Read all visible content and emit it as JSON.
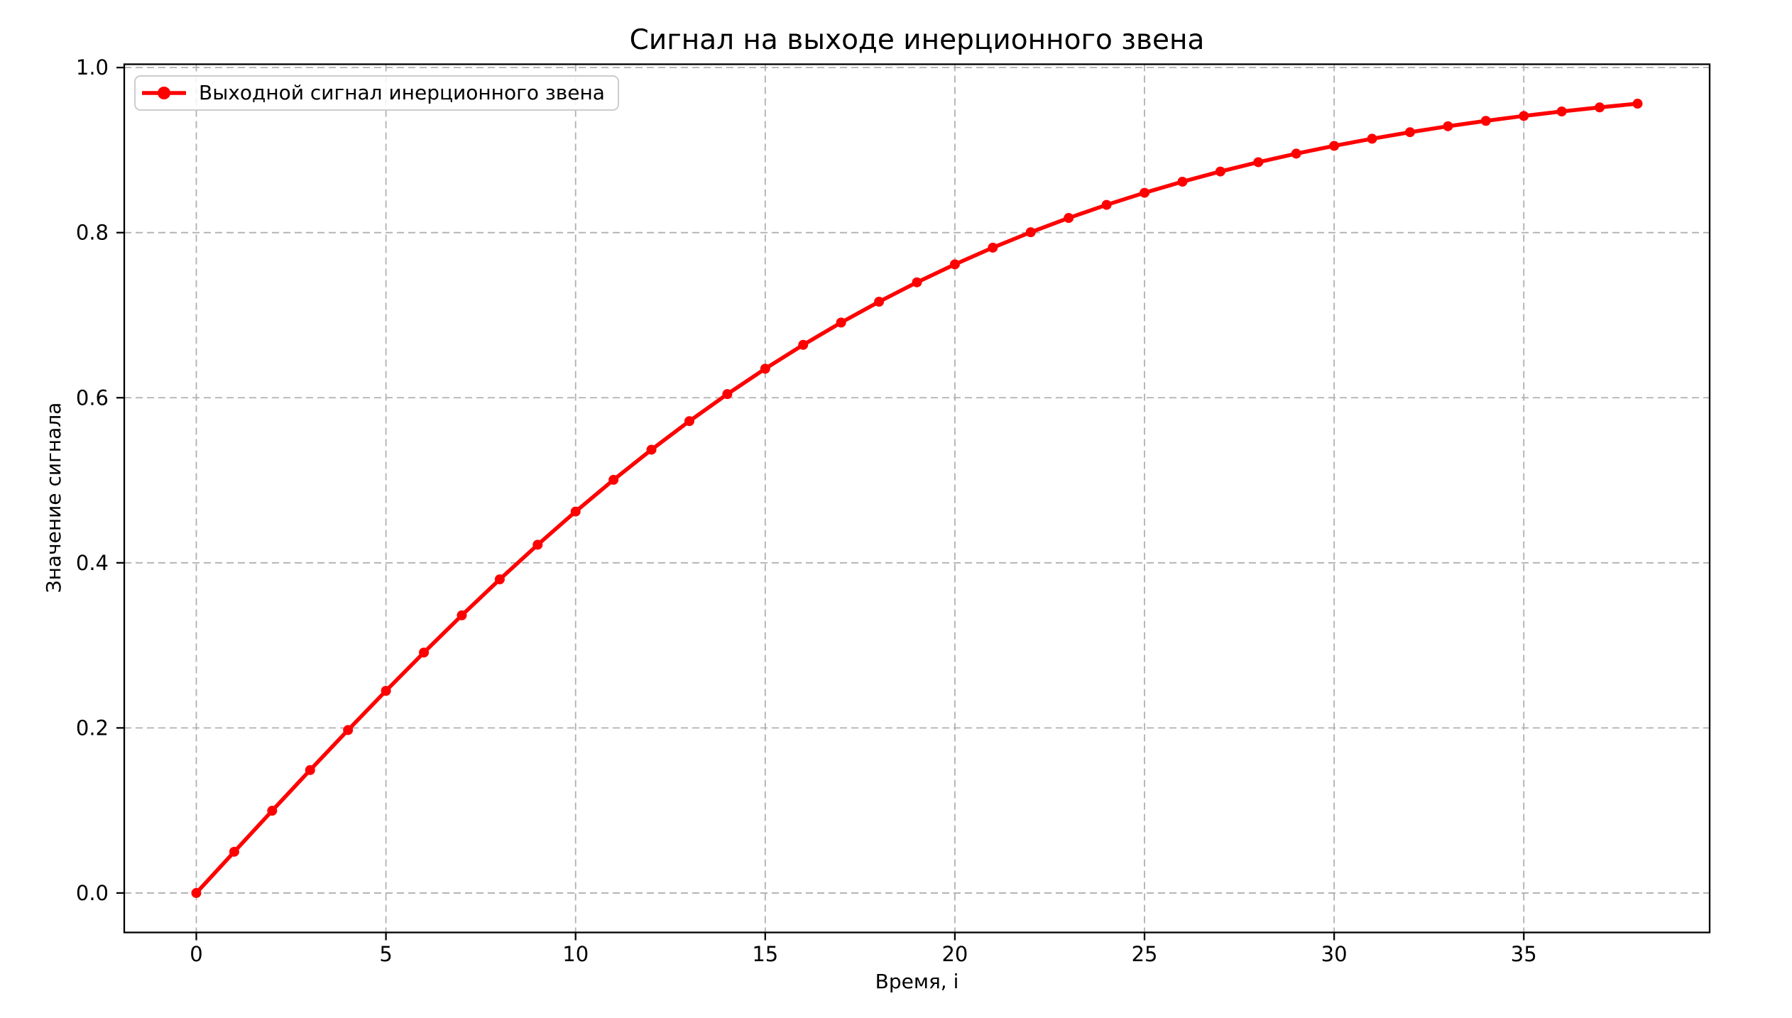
{
  "chart_data": {
    "type": "line",
    "title": "Сигнал на выходе инерционного звена",
    "xlabel": "Время, i",
    "ylabel": "Значение сигнала",
    "series": [
      {
        "name": "Выходной сигнал инерционного звена",
        "color": "#ff0000",
        "marker": "circle",
        "x": [
          0,
          1,
          2,
          3,
          4,
          5,
          6,
          7,
          8,
          9,
          10,
          11,
          12,
          13,
          14,
          15,
          16,
          17,
          18,
          19,
          20,
          21,
          22,
          23,
          24,
          25,
          26,
          27,
          28,
          29,
          30,
          31,
          32,
          33,
          34,
          35,
          36,
          37,
          38
        ],
        "y": [
          0.0,
          0.04996,
          0.09967,
          0.14889,
          0.19738,
          0.24492,
          0.29131,
          0.33638,
          0.37995,
          0.4219,
          0.46212,
          0.50052,
          0.53705,
          0.57167,
          0.60437,
          0.63515,
          0.66404,
          0.69107,
          0.7163,
          0.73978,
          0.76159,
          0.78181,
          0.8005,
          0.81776,
          0.83366,
          0.84828,
          0.86172,
          0.87406,
          0.88535,
          0.8957,
          0.90515,
          0.91378,
          0.92167,
          0.92887,
          0.93541,
          0.94138,
          0.94681,
          0.95174,
          0.95624
        ]
      }
    ],
    "xlim": [
      -1.9,
      39.9
    ],
    "ylim": [
      -0.0478,
      1.004
    ],
    "xticks": {
      "values": [
        0,
        5,
        10,
        15,
        20,
        25,
        30,
        35
      ],
      "labels": [
        "0",
        "5",
        "10",
        "15",
        "20",
        "25",
        "30",
        "35"
      ]
    },
    "yticks": {
      "values": [
        0.0,
        0.2,
        0.4,
        0.6,
        0.8,
        1.0
      ],
      "labels": [
        "0.0",
        "0.2",
        "0.4",
        "0.6",
        "0.8",
        "1.0"
      ]
    },
    "grid": {
      "show": true,
      "style": "dashed",
      "color": "#b0b0b0"
    },
    "axes": {
      "spine_color": "#000000",
      "background": "#ffffff"
    },
    "legend": {
      "position": "upper-left",
      "entries": [
        "Выходной сигнал инерционного звена"
      ]
    }
  }
}
